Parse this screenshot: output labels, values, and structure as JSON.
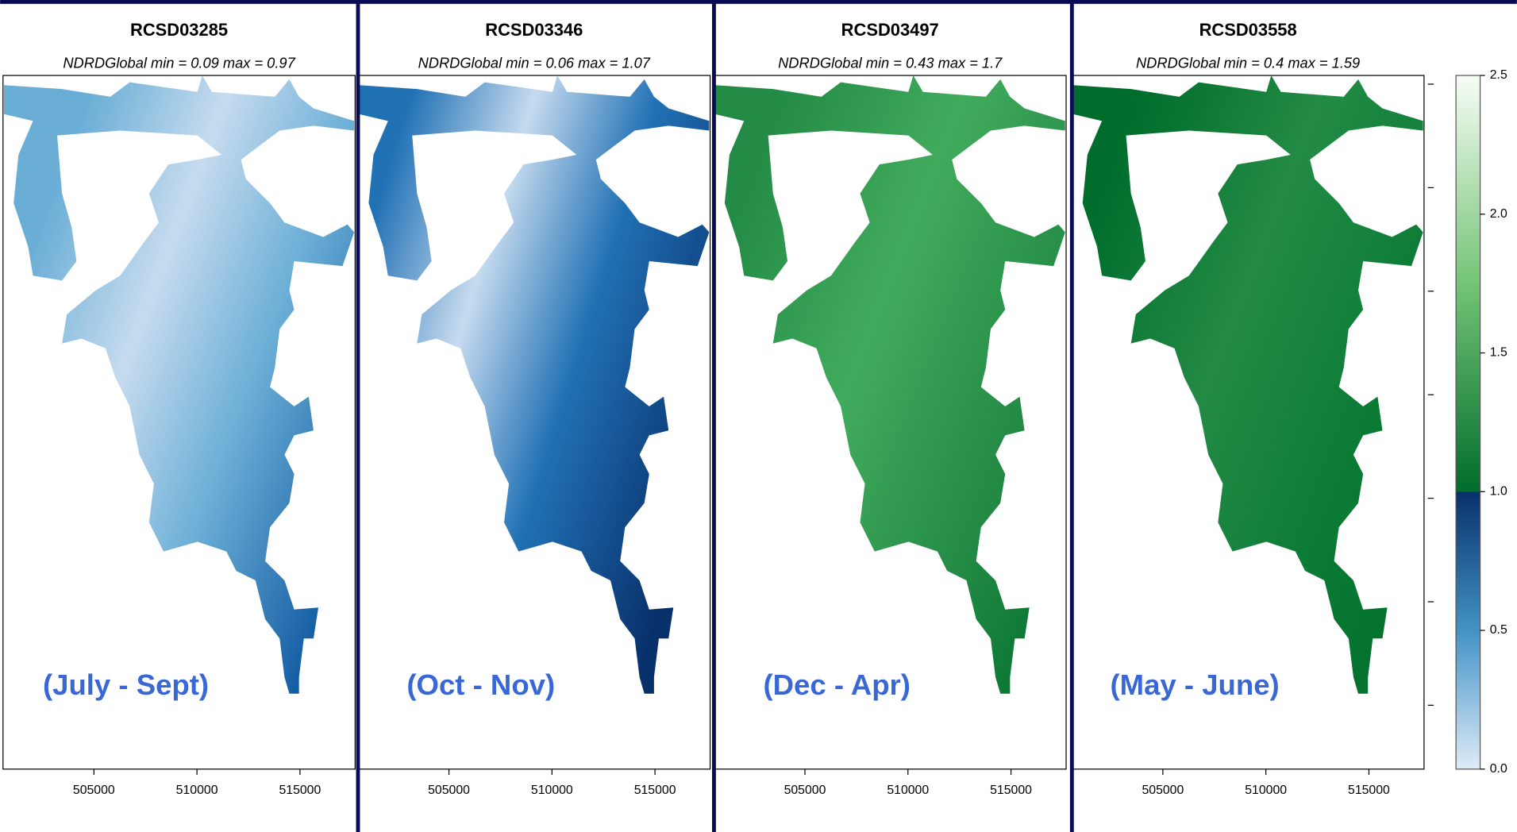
{
  "panels": [
    {
      "title": "RCSD03285",
      "subtitle": "NDRDGlobal  min =  0.09  max =  0.97",
      "season": "(July - Sept)",
      "xticks": [
        "505000",
        "510000",
        "515000"
      ]
    },
    {
      "title": "RCSD03346",
      "subtitle": "NDRDGlobal  min =  0.06  max =  1.07",
      "season": "(Oct - Nov)",
      "xticks": [
        "505000",
        "510000",
        "515000"
      ]
    },
    {
      "title": "RCSD03497",
      "subtitle": "NDRDGlobal  min =  0.43  max =  1.7",
      "season": "(Dec - Apr)",
      "xticks": [
        "505000",
        "510000",
        "515000"
      ]
    },
    {
      "title": "RCSD03558",
      "subtitle": "NDRDGlobal  min =  0.4  max =  1.59",
      "season": "(May - June)",
      "xticks": [
        "505000",
        "510000",
        "515000"
      ]
    }
  ],
  "colorbar": {
    "ticks": [
      "0.0",
      "0.5",
      "1.0",
      "1.5",
      "2.0",
      "2.5"
    ]
  }
}
